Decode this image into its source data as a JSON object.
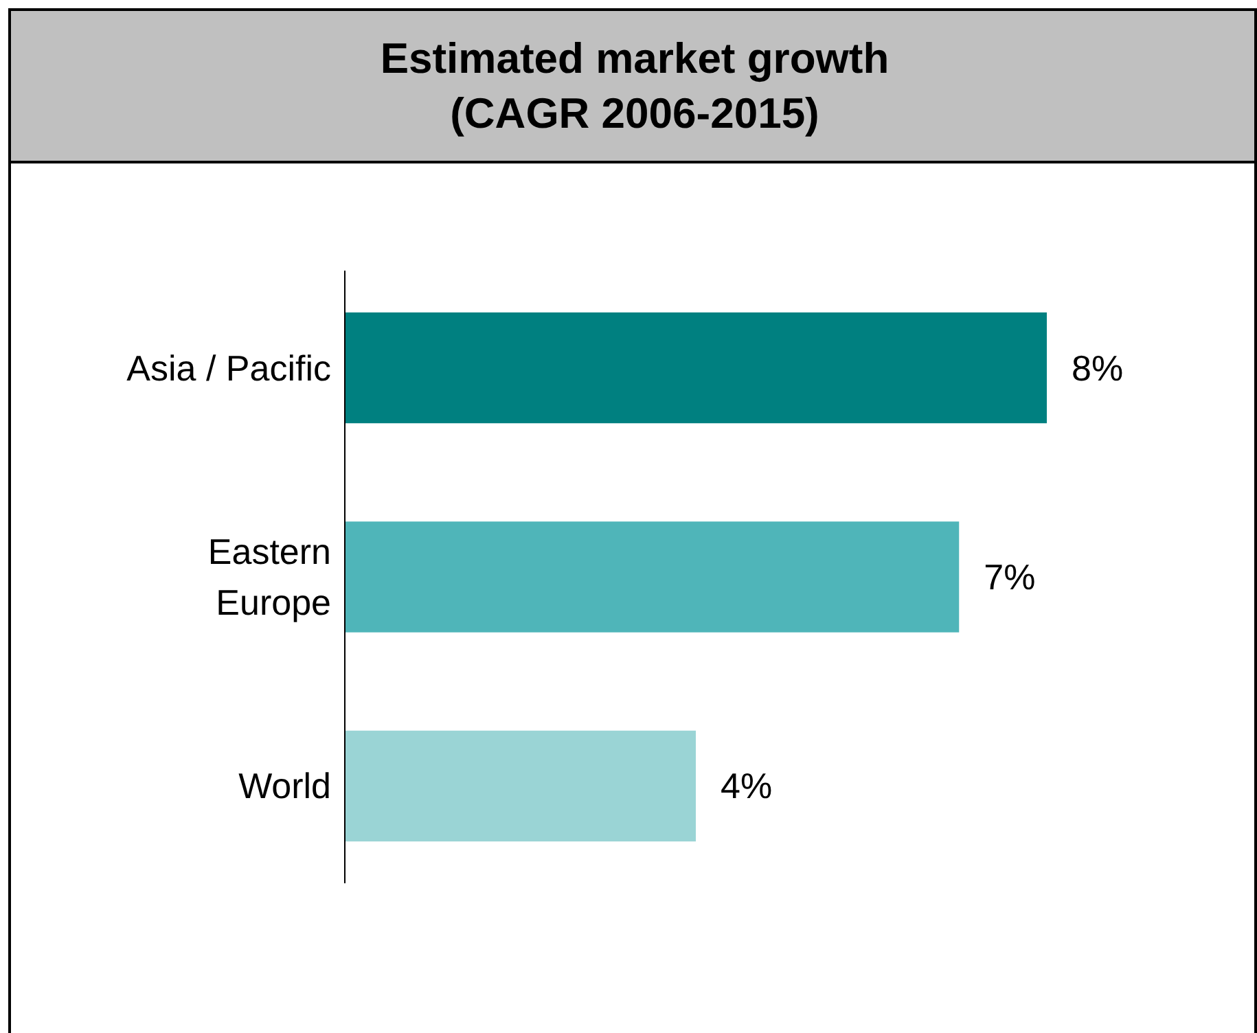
{
  "chart_data": {
    "type": "bar",
    "orientation": "horizontal",
    "title": "Estimated market growth\n(CAGR 2006-2015)",
    "categories": [
      "Asia / Pacific",
      "Eastern\nEurope",
      "World"
    ],
    "values": [
      8,
      7,
      4
    ],
    "colors": [
      "#008080",
      "#4fb5b9",
      "#9ad4d5"
    ],
    "value_labels": [
      "8%",
      "7%",
      "4%"
    ]
  }
}
